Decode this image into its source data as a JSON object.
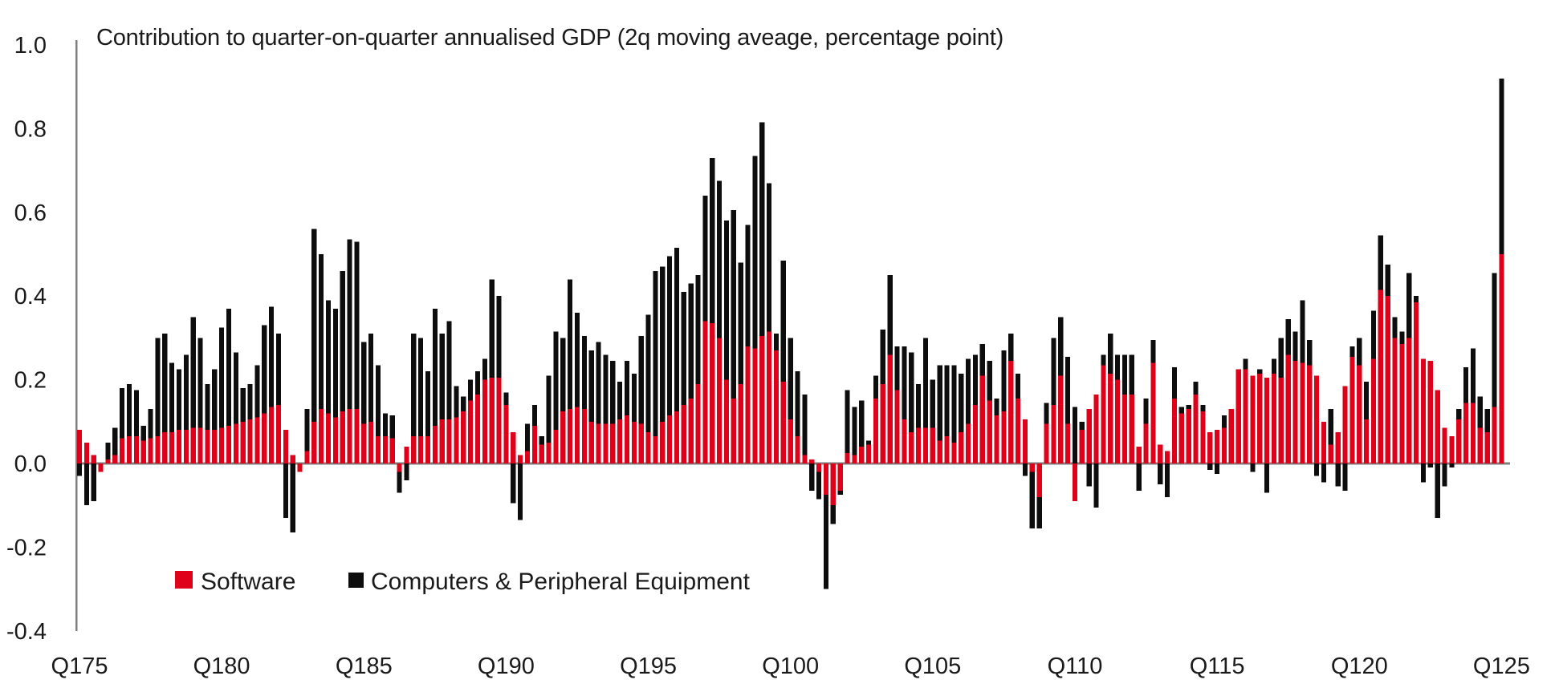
{
  "chart": {
    "title": "Contribution to quarter-on-quarter annualised GDP (2q moving aveage, percentage point)",
    "legend": [
      {
        "label": "Software",
        "color": "#de0119"
      },
      {
        "label": "Computers & Peripheral Equipment",
        "color": "#0d0d0d"
      }
    ],
    "axis_color": "#7f7f7f",
    "text_color": "#1a1a1a"
  },
  "chart_data": {
    "type": "bar",
    "stacked": true,
    "frequency": "quarterly",
    "x_start": "1975Q1",
    "x_end": "2025Q1",
    "title": "Contribution to quarter-on-quarter annualised GDP (2q moving aveage, percentage point)",
    "ylim": [
      -0.4,
      1.0
    ],
    "grid": false,
    "legend_position": "inside-bottom-left",
    "y_tick_values": [
      1.0,
      0.8,
      0.6,
      0.4,
      0.2,
      0.0,
      -0.2,
      -0.4
    ],
    "y_tick_labels": [
      "1.0",
      "0.8",
      "0.6",
      "0.4",
      "0.2",
      "0.0",
      "-0.2",
      "-0.4"
    ],
    "x_tick_labels": [
      "Q175",
      "Q180",
      "Q185",
      "Q190",
      "Q195",
      "Q100",
      "Q105",
      "Q110",
      "Q115",
      "Q120",
      "Q125"
    ],
    "x_tick_indices": [
      0,
      20,
      40,
      60,
      80,
      100,
      120,
      140,
      160,
      180,
      200
    ],
    "series": [
      {
        "name": "Software",
        "color": "#de0119",
        "values": [
          0.08,
          0.05,
          0.02,
          -0.02,
          0.01,
          0.02,
          0.06,
          0.065,
          0.065,
          0.055,
          0.06,
          0.065,
          0.075,
          0.075,
          0.08,
          0.08,
          0.085,
          0.085,
          0.08,
          0.08,
          0.085,
          0.09,
          0.095,
          0.1,
          0.105,
          0.11,
          0.12,
          0.135,
          0.14,
          0.08,
          0.02,
          -0.02,
          0.03,
          0.1,
          0.13,
          0.12,
          0.11,
          0.125,
          0.13,
          0.13,
          0.095,
          0.1,
          0.065,
          0.065,
          0.06,
          -0.02,
          0.04,
          0.065,
          0.065,
          0.065,
          0.09,
          0.105,
          0.105,
          0.11,
          0.125,
          0.15,
          0.165,
          0.2,
          0.205,
          0.205,
          0.14,
          0.075,
          0.02,
          0.03,
          0.09,
          0.045,
          0.05,
          0.08,
          0.125,
          0.13,
          0.135,
          0.13,
          0.1,
          0.095,
          0.095,
          0.095,
          0.105,
          0.115,
          0.1,
          0.095,
          0.075,
          0.065,
          0.1,
          0.115,
          0.125,
          0.14,
          0.155,
          0.19,
          0.34,
          0.335,
          0.3,
          0.2,
          0.155,
          0.19,
          0.28,
          0.275,
          0.305,
          0.315,
          0.27,
          0.195,
          0.105,
          0.065,
          0.02,
          0.01,
          -0.02,
          -0.075,
          -0.1,
          -0.065,
          0.025,
          0.02,
          0.04,
          0.045,
          0.155,
          0.19,
          0.26,
          0.175,
          0.105,
          0.075,
          0.085,
          0.085,
          0.085,
          0.055,
          0.065,
          0.05,
          0.075,
          0.095,
          0.14,
          0.21,
          0.15,
          0.115,
          0.125,
          0.245,
          0.155,
          0.105,
          -0.02,
          -0.08,
          0.095,
          0.14,
          0.21,
          0.095,
          -0.09,
          0.08,
          0.13,
          0.165,
          0.235,
          0.215,
          0.2,
          0.165,
          0.165,
          0.04,
          0.095,
          0.24,
          0.045,
          0.03,
          0.155,
          0.12,
          0.13,
          0.165,
          0.125,
          0.075,
          0.08,
          0.085,
          0.13,
          0.225,
          0.225,
          0.21,
          0.215,
          0.205,
          0.215,
          0.205,
          0.26,
          0.245,
          0.24,
          0.235,
          0.21,
          0.1,
          0.045,
          0.075,
          0.185,
          0.255,
          0.235,
          0.105,
          0.25,
          0.415,
          0.4,
          0.3,
          0.285,
          0.3,
          0.385,
          0.25,
          0.245,
          0.175,
          0.085,
          0.065,
          0.105,
          0.145,
          0.145,
          0.085,
          0.075,
          0.135,
          0.5
        ]
      },
      {
        "name": "Computers & Peripheral Equipment",
        "color": "#0d0d0d",
        "values": [
          -0.03,
          -0.1,
          -0.09,
          0,
          0.04,
          0.065,
          0.12,
          0.125,
          0.11,
          0.035,
          0.07,
          0.235,
          0.235,
          0.165,
          0.145,
          0.18,
          0.265,
          0.215,
          0.11,
          0.145,
          0.24,
          0.28,
          0.17,
          0.08,
          0.085,
          0.125,
          0.21,
          0.24,
          0.17,
          -0.13,
          -0.165,
          0,
          0.1,
          0.46,
          0.37,
          0.27,
          0.26,
          0.335,
          0.405,
          0.4,
          0.195,
          0.21,
          0.17,
          0.055,
          0.055,
          -0.05,
          -0.04,
          0.245,
          0.235,
          0.155,
          0.28,
          0.205,
          0.235,
          0.075,
          0.035,
          0.05,
          0.055,
          0.05,
          0.235,
          0.195,
          0.03,
          -0.095,
          -0.135,
          0.065,
          0.05,
          0.02,
          0.16,
          0.235,
          0.175,
          0.31,
          0.225,
          0.175,
          0.17,
          0.195,
          0.165,
          0.15,
          0.09,
          0.13,
          0.115,
          0.21,
          0.28,
          0.395,
          0.37,
          0.38,
          0.39,
          0.27,
          0.275,
          0.26,
          0.3,
          0.395,
          0.375,
          0.38,
          0.45,
          0.29,
          0.29,
          0.46,
          0.51,
          0.355,
          0.04,
          0.29,
          0.195,
          0.155,
          0.145,
          -0.065,
          -0.065,
          -0.225,
          -0.045,
          -0.01,
          0.15,
          0.115,
          0.11,
          0.01,
          0.055,
          0.13,
          0.19,
          0.105,
          0.175,
          0.19,
          0.105,
          0.215,
          0.115,
          0.18,
          0.17,
          0.185,
          0.14,
          0.155,
          0.12,
          0.075,
          0.095,
          0.04,
          0.145,
          0.065,
          0.06,
          -0.03,
          -0.135,
          -0.075,
          0.05,
          0.16,
          0.14,
          0.16,
          0.135,
          0.02,
          -0.055,
          -0.105,
          0.025,
          0.095,
          0.06,
          0.095,
          0.095,
          -0.065,
          0.06,
          0.055,
          -0.05,
          -0.08,
          0.075,
          0.015,
          0.01,
          0.03,
          0.015,
          -0.015,
          -0.025,
          0.03,
          0,
          0,
          0.025,
          -0.02,
          0.01,
          -0.07,
          0.035,
          0.095,
          0.085,
          0.07,
          0.15,
          0.06,
          -0.03,
          -0.045,
          0.085,
          -0.055,
          -0.065,
          0.025,
          0.065,
          0.09,
          0.115,
          0.13,
          0.075,
          0.05,
          0.03,
          0.155,
          0.015,
          -0.045,
          -0.01,
          -0.13,
          -0.055,
          -0.01,
          0.025,
          0.085,
          0.13,
          0.075,
          0.055,
          0.32,
          0.42
        ]
      }
    ]
  }
}
